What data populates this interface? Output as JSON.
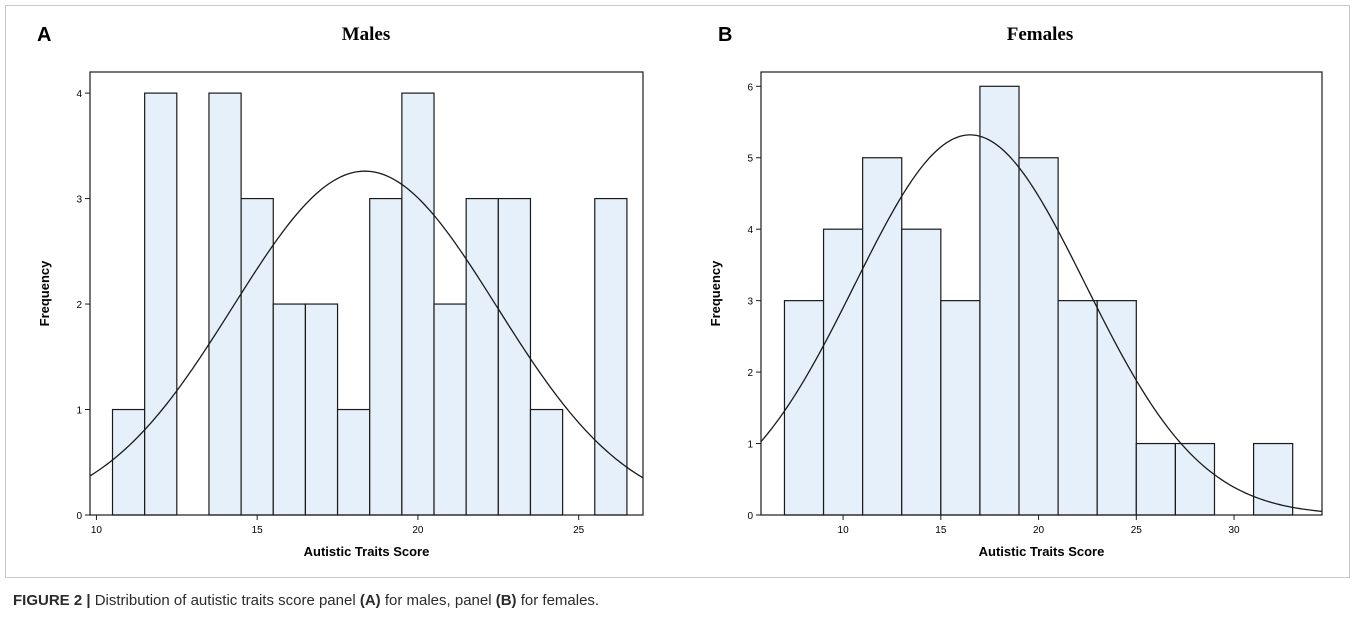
{
  "figure": {
    "panels": [
      {
        "letter": "A",
        "title": "Males"
      },
      {
        "letter": "B",
        "title": "Females"
      }
    ],
    "caption": {
      "label": "FIGURE 2 |",
      "text_1": " Distribution of autistic traits score panel ",
      "panel_a": "(A)",
      "text_2": " for males, panel ",
      "panel_b": "(B)",
      "text_3": " for females."
    }
  },
  "colors": {
    "bar_fill": "#e5f0fb",
    "bar_stroke": "#1a1a1a",
    "curve": "#1a1a1a",
    "axis": "#1a1a1a"
  },
  "chart_data": [
    {
      "type": "bar",
      "title": "Males",
      "xlabel": "Autistic Traits Score",
      "ylabel": "Frequency",
      "xlim": [
        9.8,
        27.0
      ],
      "ylim": [
        0,
        4.2
      ],
      "x_ticks": [
        10,
        15,
        20,
        25
      ],
      "y_ticks": [
        0,
        1,
        2,
        3,
        4
      ],
      "bin_width": 1,
      "bins": [
        {
          "start": 10.5,
          "value": 1
        },
        {
          "start": 11.5,
          "value": 4
        },
        {
          "start": 13.5,
          "value": 4
        },
        {
          "start": 14.5,
          "value": 3
        },
        {
          "start": 15.5,
          "value": 2
        },
        {
          "start": 16.5,
          "value": 2
        },
        {
          "start": 17.5,
          "value": 1
        },
        {
          "start": 18.5,
          "value": 3
        },
        {
          "start": 19.5,
          "value": 4
        },
        {
          "start": 20.5,
          "value": 2
        },
        {
          "start": 21.5,
          "value": 3
        },
        {
          "start": 22.5,
          "value": 3
        },
        {
          "start": 23.5,
          "value": 1
        },
        {
          "start": 25.5,
          "value": 3
        }
      ],
      "normal_curve": {
        "mean": 18.35,
        "sd": 4.1,
        "peak": 3.26
      },
      "grid": false
    },
    {
      "type": "bar",
      "title": "Females",
      "xlabel": "Autistic Traits Score",
      "ylabel": "Frequency",
      "xlim": [
        5.8,
        34.5
      ],
      "ylim": [
        0,
        6.2
      ],
      "x_ticks": [
        10,
        15,
        20,
        25,
        30
      ],
      "y_ticks": [
        0,
        1,
        2,
        3,
        4,
        5,
        6
      ],
      "bin_width": 2,
      "bins": [
        {
          "start": 7,
          "value": 3
        },
        {
          "start": 9,
          "value": 4
        },
        {
          "start": 11,
          "value": 5
        },
        {
          "start": 13,
          "value": 4
        },
        {
          "start": 15,
          "value": 3
        },
        {
          "start": 17,
          "value": 6
        },
        {
          "start": 19,
          "value": 5
        },
        {
          "start": 21,
          "value": 3
        },
        {
          "start": 23,
          "value": 3
        },
        {
          "start": 25,
          "value": 1
        },
        {
          "start": 27,
          "value": 1
        },
        {
          "start": 31,
          "value": 1
        }
      ],
      "normal_curve": {
        "mean": 16.5,
        "sd": 5.9,
        "peak": 5.32
      },
      "grid": false
    }
  ]
}
